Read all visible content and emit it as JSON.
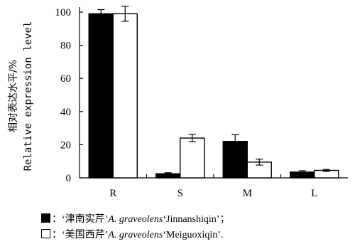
{
  "chart_data": {
    "type": "bar",
    "ylabel_cn": "相对表达水平/%",
    "ylabel_en": "Relative expression level",
    "xlabel": "",
    "categories": [
      "R",
      "S",
      "M",
      "L"
    ],
    "ylim": [
      0,
      100
    ],
    "yticks": [
      0,
      20,
      40,
      60,
      80,
      100
    ],
    "series": [
      {
        "name": "津南实芹",
        "fill": "#000000",
        "values": [
          99,
          2.5,
          22,
          3.5
        ],
        "errors": [
          2.5,
          0.6,
          4,
          0.8
        ]
      },
      {
        "name": "美国西芹",
        "fill": "#ffffff",
        "values": [
          99,
          24,
          9.5,
          4.5
        ],
        "errors": [
          4.5,
          2.2,
          1.8,
          0.6
        ]
      }
    ]
  },
  "legend": [
    {
      "name": "津南实芹",
      "sep": "：",
      "cn": "‘津南实芹’",
      "genus": "A.",
      "species": "graveolens",
      "cultivar": "‘Jinnanshiqin’",
      "end": "；"
    },
    {
      "name": "美国西芹",
      "sep": "：",
      "cn": "‘美国西芹’",
      "genus": "A.",
      "species": "graveolens",
      "cultivar": "‘Meiguoxiqin’",
      "end": "."
    }
  ]
}
